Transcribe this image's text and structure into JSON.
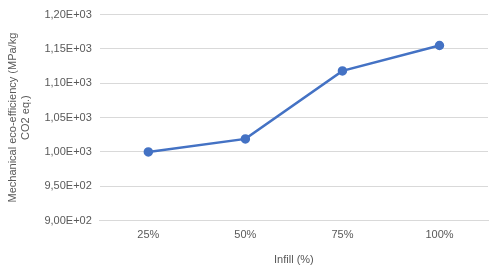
{
  "chart_data": {
    "type": "line",
    "x_label": "Infill (%)",
    "y_label": "Mechanical eco-efficiency (MPa/kg CO2 eq.)",
    "categories": [
      "25%",
      "50%",
      "75%",
      "100%"
    ],
    "values": [
      1000,
      1019,
      1118,
      1155
    ],
    "color": "#4472c4",
    "marker": "circle",
    "ylim": [
      900,
      1200
    ],
    "yticks": [
      {
        "value": 900,
        "label": "9,00E+02"
      },
      {
        "value": 950,
        "label": "9,50E+02"
      },
      {
        "value": 1000,
        "label": "1,00E+03"
      },
      {
        "value": 1050,
        "label": "1,05E+03"
      },
      {
        "value": 1100,
        "label": "1,10E+03"
      },
      {
        "value": 1150,
        "label": "1,15E+03"
      },
      {
        "value": 1200,
        "label": "1,20E+03"
      }
    ],
    "grid": true
  }
}
